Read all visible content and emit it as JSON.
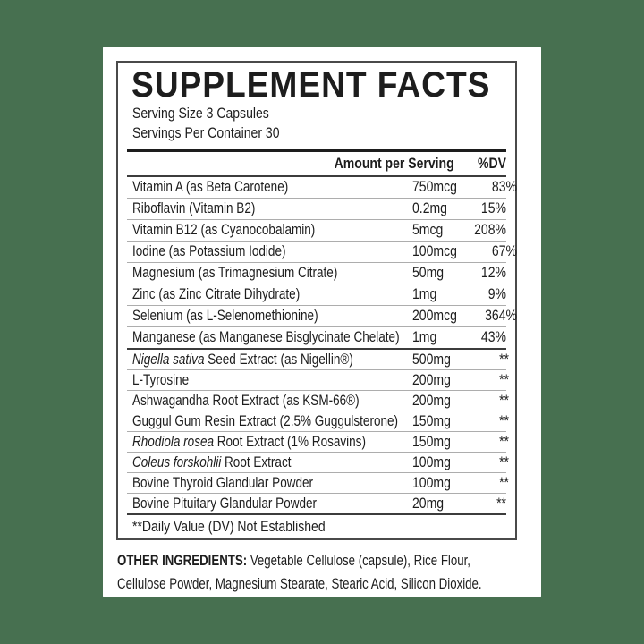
{
  "background": {
    "page_color": "#477050",
    "card_color": "#ffffff"
  },
  "panel": {
    "title": "SUPPLEMENT FACTS",
    "serving_size": "Serving Size 3 Capsules",
    "servings_per_container": "Servings Per Container 30",
    "header": {
      "amount": "Amount per Serving",
      "dv": "%DV"
    },
    "vitamins": [
      {
        "name": "Vitamin A (as Beta Carotene)",
        "amount": "750mcg",
        "dv": "83%"
      },
      {
        "name": "Riboflavin (Vitamin B2)",
        "amount": "0.2mg",
        "dv": "15%"
      },
      {
        "name": "Vitamin B12 (as Cyanocobalamin)",
        "amount": "5mcg",
        "dv": "208%"
      },
      {
        "name": "Iodine (as Potassium Iodide)",
        "amount": "100mcg",
        "dv": "67%"
      },
      {
        "name": "Magnesium (as Trimagnesium Citrate)",
        "amount": "50mg",
        "dv": "12%"
      },
      {
        "name": "Zinc (as Zinc Citrate Dihydrate)",
        "amount": "1mg",
        "dv": "9%"
      },
      {
        "name": "Selenium (as L-Selenomethionine)",
        "amount": "200mcg",
        "dv": "364%"
      },
      {
        "name": "Manganese (as Manganese Bisglycinate Chelate)",
        "amount": "1mg",
        "dv": "43%"
      }
    ],
    "botanicals": [
      {
        "sci": "Nigella sativa",
        "name": " Seed Extract (as Nigellin®)",
        "amount": "500mg",
        "dv": "**"
      },
      {
        "sci": "",
        "name": "L-Tyrosine",
        "amount": "200mg",
        "dv": "**"
      },
      {
        "sci": "",
        "name": "Ashwagandha Root Extract (as KSM-66®)",
        "amount": "200mg",
        "dv": "**"
      },
      {
        "sci": "",
        "name": "Guggul Gum Resin Extract (2.5% Guggulsterone)",
        "amount": "150mg",
        "dv": "**"
      },
      {
        "sci": "Rhodiola rosea",
        "name": " Root Extract (1% Rosavins)",
        "amount": "150mg",
        "dv": "**"
      },
      {
        "sci": "Coleus forskohlii",
        "name": " Root Extract",
        "amount": "100mg",
        "dv": "**"
      },
      {
        "sci": "",
        "name": "Bovine Thyroid Glandular Powder",
        "amount": "100mg",
        "dv": "**"
      },
      {
        "sci": "",
        "name": "Bovine Pituitary Glandular Powder",
        "amount": "20mg",
        "dv": "**"
      }
    ],
    "footnote": "**Daily Value (DV) Not Established"
  },
  "other_ingredients": {
    "label": "OTHER INGREDIENTS:",
    "line1": " Vegetable Cellulose (capsule), Rice Flour,",
    "line2": "Cellulose Powder, Magnesium Stearate, Stearic Acid, Silicon Dioxide."
  }
}
